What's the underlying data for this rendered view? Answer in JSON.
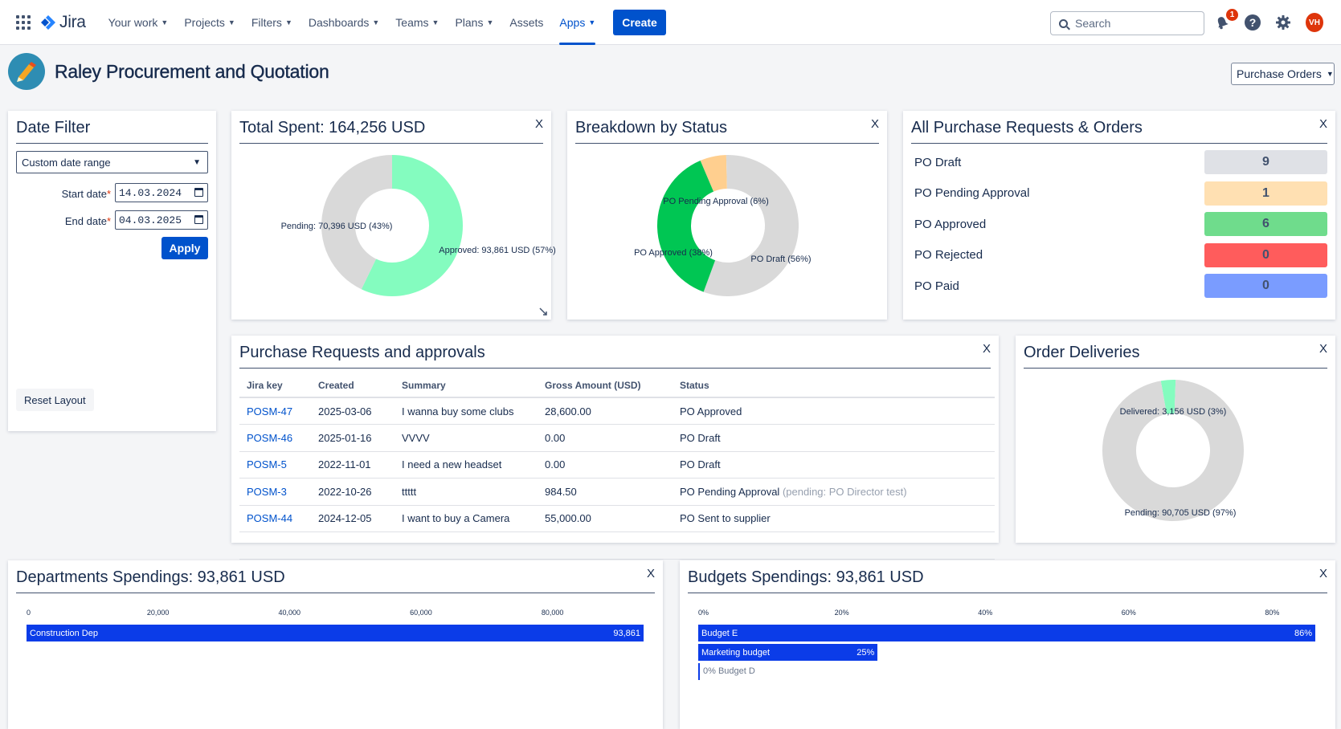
{
  "nav": {
    "brand": "Jira",
    "items": [
      {
        "label": "Your work",
        "chevron": true
      },
      {
        "label": "Projects",
        "chevron": true
      },
      {
        "label": "Filters",
        "chevron": true
      },
      {
        "label": "Dashboards",
        "chevron": true
      },
      {
        "label": "Teams",
        "chevron": true
      },
      {
        "label": "Plans",
        "chevron": true
      },
      {
        "label": "Assets",
        "chevron": false
      },
      {
        "label": "Apps",
        "chevron": true,
        "active": true
      }
    ],
    "create_label": "Create",
    "search_placeholder": "Search",
    "notification_count": "1",
    "avatar_initials": "VH"
  },
  "page": {
    "title": "Raley Procurement and Quotation",
    "view_select": "Purchase Orders"
  },
  "date_filter": {
    "title": "Date Filter",
    "range_select": "Custom date range",
    "start_label": "Start date",
    "start_value": "14.03.2024",
    "end_label": "End date",
    "end_value": "04.03.2025",
    "apply_label": "Apply",
    "reset_label": "Reset Layout"
  },
  "total_spent": {
    "title": "Total Spent: 164,256 USD",
    "close": "X"
  },
  "breakdown": {
    "title": "Breakdown by Status",
    "close": "X"
  },
  "all_requests": {
    "title": "All Purchase Requests & Orders",
    "close": "X",
    "rows": [
      {
        "label": "PO Draft",
        "count": "9",
        "color": "#dfe1e6"
      },
      {
        "label": "PO Pending Approval",
        "count": "1",
        "color": "#ffe0b2"
      },
      {
        "label": "PO Approved",
        "count": "6",
        "color": "#6fdc8c"
      },
      {
        "label": "PO Rejected",
        "count": "0",
        "color": "#ff5c5c"
      },
      {
        "label": "PO Paid",
        "count": "0",
        "color": "#7a9cff"
      }
    ]
  },
  "requests_table": {
    "title": "Purchase Requests and approvals",
    "close": "X",
    "columns": [
      "Jira key",
      "Created",
      "Summary",
      "Gross Amount (USD)",
      "Status"
    ],
    "rows": [
      {
        "key": "POSM-47",
        "created": "2025-03-06",
        "summary": "I wanna buy some clubs",
        "amount": "28,600.00",
        "status": "PO Approved",
        "note": ""
      },
      {
        "key": "POSM-46",
        "created": "2025-01-16",
        "summary": "VVVV",
        "amount": "0.00",
        "status": "PO Draft",
        "note": ""
      },
      {
        "key": "POSM-5",
        "created": "2022-11-01",
        "summary": "I need a new headset",
        "amount": "0.00",
        "status": "PO Draft",
        "note": ""
      },
      {
        "key": "POSM-3",
        "created": "2022-10-26",
        "summary": "ttttt",
        "amount": "984.50",
        "status": "PO Pending Approval",
        "note": "(pending: PO Director test)"
      },
      {
        "key": "POSM-44",
        "created": "2024-12-05",
        "summary": "I want to buy a Camera",
        "amount": "55,000.00",
        "status": "PO Sent to supplier",
        "note": ""
      }
    ]
  },
  "order_deliveries": {
    "title": "Order Deliveries",
    "close": "X"
  },
  "dept_spend": {
    "title": "Departments Spendings: 93,861 USD",
    "close": "X"
  },
  "budget_spend": {
    "title": "Budgets Spendings: 93,861 USD",
    "close": "X"
  },
  "chart_data": [
    {
      "type": "pie",
      "title": "Total Spent: 164,256 USD",
      "donut": true,
      "slices": [
        {
          "label": "Approved: 93,861 USD (57%)",
          "value": 93861,
          "color": "#84fcbf"
        },
        {
          "label": "Pending: 70,396 USD (43%)",
          "value": 70396,
          "color": "#d9d9d9"
        }
      ]
    },
    {
      "type": "pie",
      "title": "Breakdown by Status",
      "donut": true,
      "slices": [
        {
          "label": "PO Pending Approval (6%)",
          "value": 6,
          "color": "#ffcf8f"
        },
        {
          "label": "PO Draft (56%)",
          "value": 56,
          "color": "#d9d9d9"
        },
        {
          "label": "PO Approved (38%)",
          "value": 38,
          "color": "#00c653"
        }
      ]
    },
    {
      "type": "pie",
      "title": "Order Deliveries",
      "donut": true,
      "slices": [
        {
          "label": "Delivered: 3,156 USD (3%)",
          "value": 3156,
          "color": "#84fcbf"
        },
        {
          "label": "Pending: 90,705 USD (97%)",
          "value": 90705,
          "color": "#d9d9d9"
        }
      ]
    },
    {
      "type": "bar",
      "orientation": "horizontal",
      "title": "Departments Spendings: 93,861 USD",
      "categories": [
        "Construction Dep"
      ],
      "values": [
        93861
      ],
      "value_labels": [
        "93,861"
      ],
      "xlim": [
        0,
        93861
      ],
      "ticks": [
        0,
        20000,
        40000,
        60000,
        80000
      ],
      "tick_labels": [
        "0",
        "20,000",
        "40,000",
        "60,000",
        "80,000"
      ],
      "color": "#0b3ce8"
    },
    {
      "type": "bar",
      "orientation": "horizontal",
      "title": "Budgets Spendings: 93,861 USD",
      "categories": [
        "Budget E",
        "Marketing budget",
        "Budget D"
      ],
      "values": [
        86,
        25,
        0
      ],
      "value_labels": [
        "86%",
        "25%",
        "0%"
      ],
      "xlim": [
        0,
        86
      ],
      "ticks": [
        0,
        20,
        40,
        60,
        80
      ],
      "tick_labels": [
        "0%",
        "20%",
        "40%",
        "60%",
        "80%"
      ],
      "color": "#0b3ce8"
    }
  ]
}
